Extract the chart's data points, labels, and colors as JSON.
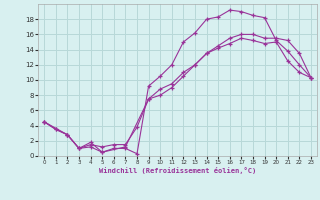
{
  "xlabel": "Windchill (Refroidissement éolien,°C)",
  "bg_color": "#d8f0f0",
  "grid_color": "#b8d8d8",
  "line_color": "#993399",
  "line1_x": [
    0,
    1,
    2,
    3,
    4,
    5,
    6,
    7,
    8,
    9,
    10,
    11,
    12,
    13,
    14,
    15,
    16,
    17,
    18,
    19,
    20,
    21,
    22,
    23
  ],
  "line1_y": [
    4.5,
    3.5,
    2.8,
    1.0,
    1.2,
    0.5,
    1.0,
    1.0,
    0.3,
    9.2,
    10.5,
    12.0,
    15.0,
    16.2,
    18.0,
    18.3,
    19.2,
    19.0,
    18.5,
    18.2,
    15.2,
    13.8,
    12.0,
    10.3
  ],
  "line2_x": [
    0,
    1,
    2,
    3,
    4,
    5,
    6,
    7,
    8,
    9,
    10,
    11,
    12,
    13,
    14,
    15,
    16,
    17,
    18,
    19,
    20,
    21,
    22,
    23
  ],
  "line2_y": [
    4.5,
    3.5,
    2.8,
    1.0,
    1.5,
    1.2,
    1.5,
    1.5,
    3.8,
    7.5,
    8.8,
    9.5,
    11.0,
    12.0,
    13.5,
    14.2,
    14.8,
    15.5,
    15.2,
    14.8,
    15.0,
    12.5,
    11.0,
    10.3
  ],
  "line3_x": [
    0,
    2,
    3,
    4,
    5,
    7,
    9,
    10,
    11,
    12,
    13,
    14,
    15,
    16,
    17,
    18,
    19,
    20,
    21,
    22,
    23
  ],
  "line3_y": [
    4.5,
    2.8,
    1.0,
    1.8,
    0.5,
    1.2,
    7.5,
    8.0,
    9.0,
    10.5,
    12.0,
    13.5,
    14.5,
    15.5,
    16.0,
    16.0,
    15.5,
    15.5,
    15.2,
    13.5,
    10.3
  ],
  "xlim": [
    -0.5,
    23.5
  ],
  "ylim": [
    0,
    20
  ],
  "xticks": [
    0,
    1,
    2,
    3,
    4,
    5,
    6,
    7,
    8,
    9,
    10,
    11,
    12,
    13,
    14,
    15,
    16,
    17,
    18,
    19,
    20,
    21,
    22,
    23
  ],
  "yticks": [
    0,
    2,
    4,
    6,
    8,
    10,
    12,
    14,
    16,
    18
  ]
}
